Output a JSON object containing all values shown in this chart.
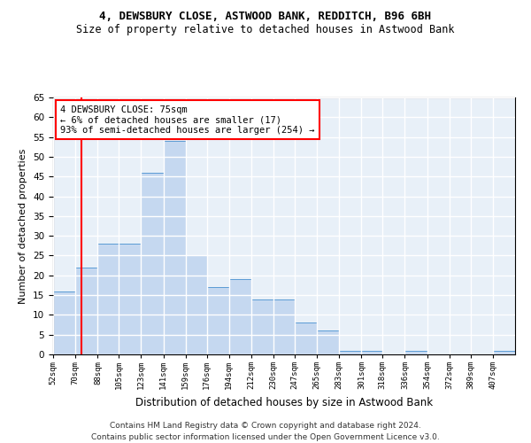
{
  "title": "4, DEWSBURY CLOSE, ASTWOOD BANK, REDDITCH, B96 6BH",
  "subtitle": "Size of property relative to detached houses in Astwood Bank",
  "xlabel": "Distribution of detached houses by size in Astwood Bank",
  "ylabel": "Number of detached properties",
  "footnote1": "Contains HM Land Registry data © Crown copyright and database right 2024.",
  "footnote2": "Contains public sector information licensed under the Open Government Licence v3.0.",
  "annotation_line1": "4 DEWSBURY CLOSE: 75sqm",
  "annotation_line2": "← 6% of detached houses are smaller (17)",
  "annotation_line3": "93% of semi-detached houses are larger (254) →",
  "red_line_x": 75,
  "bar_edges": [
    52,
    70,
    88,
    105,
    123,
    141,
    159,
    176,
    194,
    212,
    230,
    247,
    265,
    283,
    301,
    318,
    336,
    354,
    372,
    389,
    407,
    425
  ],
  "bar_values": [
    16,
    22,
    28,
    28,
    46,
    54,
    25,
    17,
    19,
    14,
    14,
    8,
    6,
    1,
    1,
    0,
    1,
    0,
    0,
    0,
    1
  ],
  "bar_color": "#c5d8f0",
  "bar_edgecolor": "#5b9bd5",
  "red_line_color": "#ff0000",
  "background_color": "#e8f0f8",
  "grid_color": "#ffffff",
  "ylim": [
    0,
    65
  ],
  "yticks": [
    0,
    5,
    10,
    15,
    20,
    25,
    30,
    35,
    40,
    45,
    50,
    55,
    60,
    65
  ],
  "title_fontsize": 9,
  "subtitle_fontsize": 8.5,
  "ylabel_fontsize": 8,
  "xlabel_fontsize": 8.5,
  "footnote_fontsize": 6.5
}
